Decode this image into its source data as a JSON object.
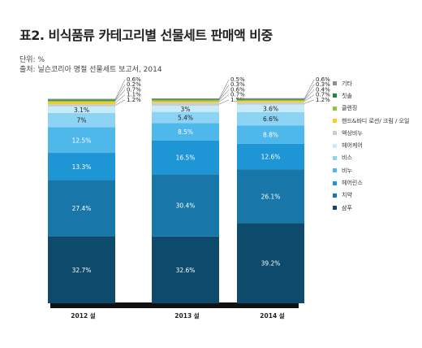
{
  "header": {
    "title": "표2. 비식품류 카테고리별 선물세트 판매액 비중",
    "unit_label": "단위: %",
    "source_label": "출처: 닐슨코리아 명절 선물세트 보고서, 2014"
  },
  "chart_data": {
    "type": "bar",
    "stacked": true,
    "categories": [
      "2012 설",
      "2013 설",
      "2014 설"
    ],
    "ylim": [
      0,
      100
    ],
    "grid": false,
    "legend_position": "right",
    "series": [
      {
        "name": "샴푸",
        "color": "#0d4a6b",
        "values": [
          32.7,
          32.6,
          39.2
        ],
        "labels": [
          "32.7%",
          "32.6%",
          "39.2%"
        ]
      },
      {
        "name": "치약",
        "color": "#1877a8",
        "values": [
          27.4,
          30.4,
          26.1
        ],
        "labels": [
          "27.4%",
          "30.4%",
          "26.1%"
        ]
      },
      {
        "name": "헤어린스",
        "color": "#1e95d4",
        "values": [
          13.3,
          16.5,
          12.6
        ],
        "labels": [
          "13.3%",
          "16.5%",
          "12.6%"
        ]
      },
      {
        "name": "비누",
        "color": "#4fb8ea",
        "values": [
          12.5,
          8.5,
          8.8
        ],
        "labels": [
          "12.5%",
          "8.5%",
          "8.8%"
        ]
      },
      {
        "name": "비스",
        "color": "#8dd3f4",
        "values": [
          7,
          5.4,
          6.6
        ],
        "labels": [
          "7%",
          "5.4%",
          "6.6%"
        ]
      },
      {
        "name": "헤어케어",
        "color": "#c6ebfb",
        "values": [
          3.1,
          3,
          3.6
        ],
        "labels": [
          "3.1%",
          "3%",
          "3.6%"
        ]
      },
      {
        "name": "액상비누",
        "color": "#c9cdd0",
        "values": [
          1.2,
          1.5,
          1.2
        ],
        "labels": [
          "1.2%",
          "1.5%",
          "1.2%"
        ]
      },
      {
        "name": "핸드&바디 로션/ 크림 / 오일",
        "color": "#f3cc2a",
        "values": [
          1.1,
          0.7,
          0.7
        ],
        "labels": [
          "1.1%",
          "0.7%",
          "0.7%"
        ]
      },
      {
        "name": "클렌징",
        "color": "#8cc63f",
        "values": [
          0.7,
          0.6,
          0.4
        ],
        "labels": [
          "0.7%",
          "0.6%",
          "0.4%"
        ]
      },
      {
        "name": "칫솔",
        "color": "#1f8a3a",
        "values": [
          0.2,
          0.3,
          0.3
        ],
        "labels": [
          "0.2%",
          "0.3%",
          "0.3%"
        ]
      },
      {
        "name": "기타",
        "color": "#8c8c8c",
        "values": [
          0.6,
          0.5,
          0.6
        ],
        "labels": [
          "0.6%",
          "0.5%",
          "0.6%"
        ]
      }
    ]
  }
}
